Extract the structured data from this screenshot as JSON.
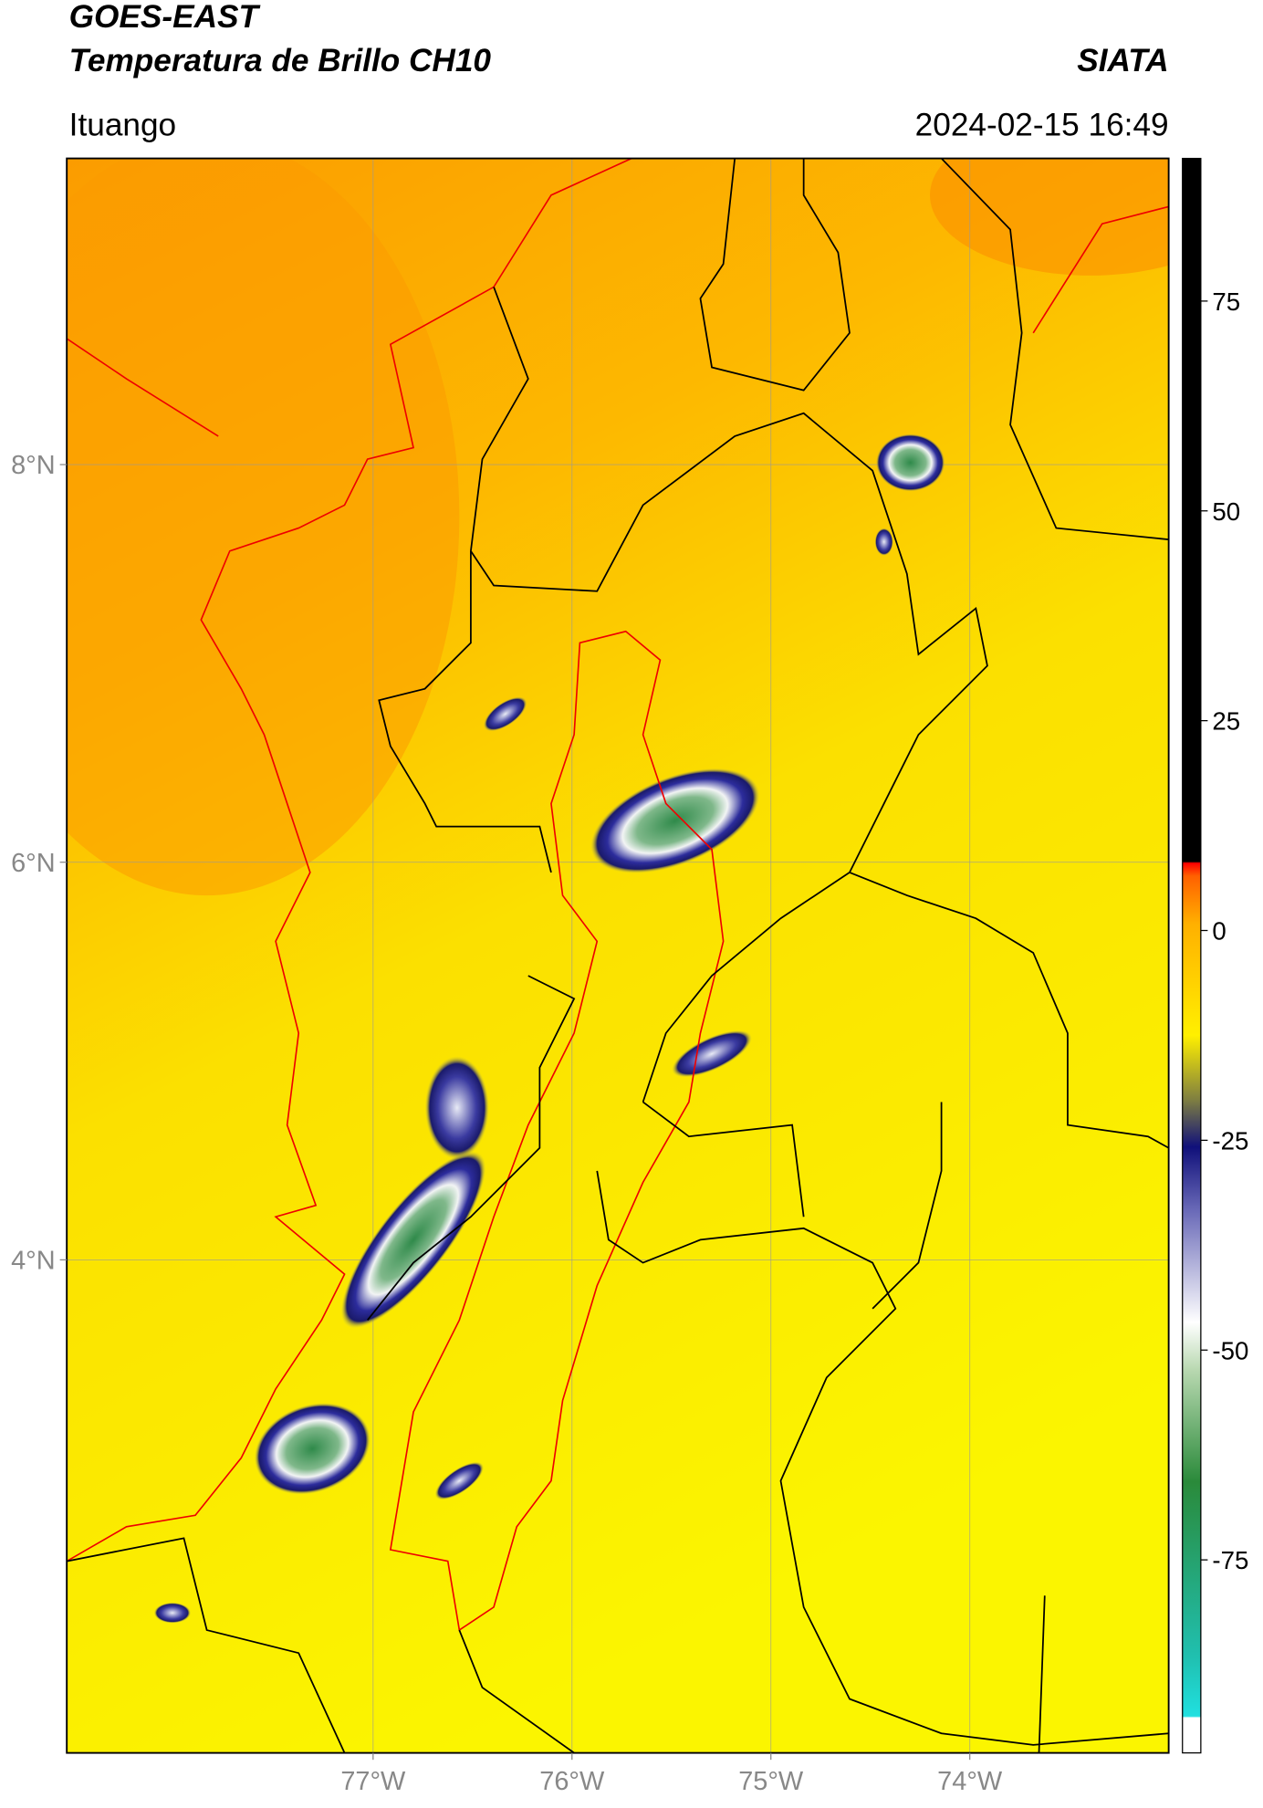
{
  "header": {
    "title_line1": "GOES-EAST",
    "title_line2": "Temperatura de Brillo CH10",
    "org": "SIATA",
    "region": "Ituango",
    "datetime": "2024-02-15 16:49"
  },
  "map": {
    "xlim": [
      -78.54,
      -73.0
    ],
    "ylim": [
      1.52,
      9.54
    ],
    "xticks": [
      {
        "value": -77,
        "label": "77°W"
      },
      {
        "value": -76,
        "label": "76°W"
      },
      {
        "value": -75,
        "label": "75°W"
      },
      {
        "value": -74,
        "label": "74°W"
      }
    ],
    "yticks": [
      {
        "value": 8,
        "label": "8°N"
      },
      {
        "value": 6,
        "label": "6°N"
      },
      {
        "value": 4,
        "label": "4°N"
      }
    ]
  },
  "colorbar": {
    "lim": [
      -98,
      92
    ],
    "ticks": [
      75,
      50,
      25,
      0,
      -25,
      -50,
      -75
    ]
  }
}
